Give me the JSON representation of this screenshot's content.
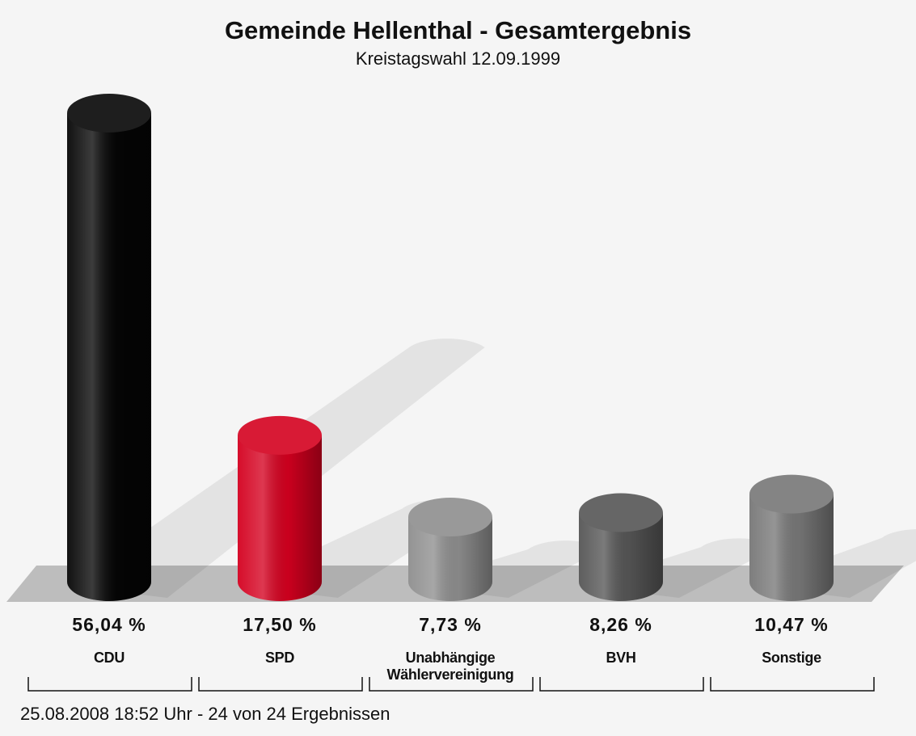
{
  "chart_data": {
    "type": "bar",
    "title": "Gemeinde Hellenthal - Gesamtergebnis",
    "subtitle": "Kreistagswahl 12.09.1999",
    "categories": [
      "CDU",
      "SPD",
      "Unabhängige Wählervereinigung",
      "BVH",
      "Sonstige"
    ],
    "values": [
      56.04,
      17.5,
      7.73,
      8.26,
      10.47
    ],
    "value_labels": [
      "56,04 %",
      "17,50 %",
      "7,73 %",
      "8,26 %",
      "10,47 %"
    ],
    "colors": [
      "#050505",
      "#d4001f",
      "#8e8e8e",
      "#555555",
      "#777777"
    ],
    "footer": "25.08.2008 18:52 Uhr - 24 von 24 Ergebnissen"
  }
}
